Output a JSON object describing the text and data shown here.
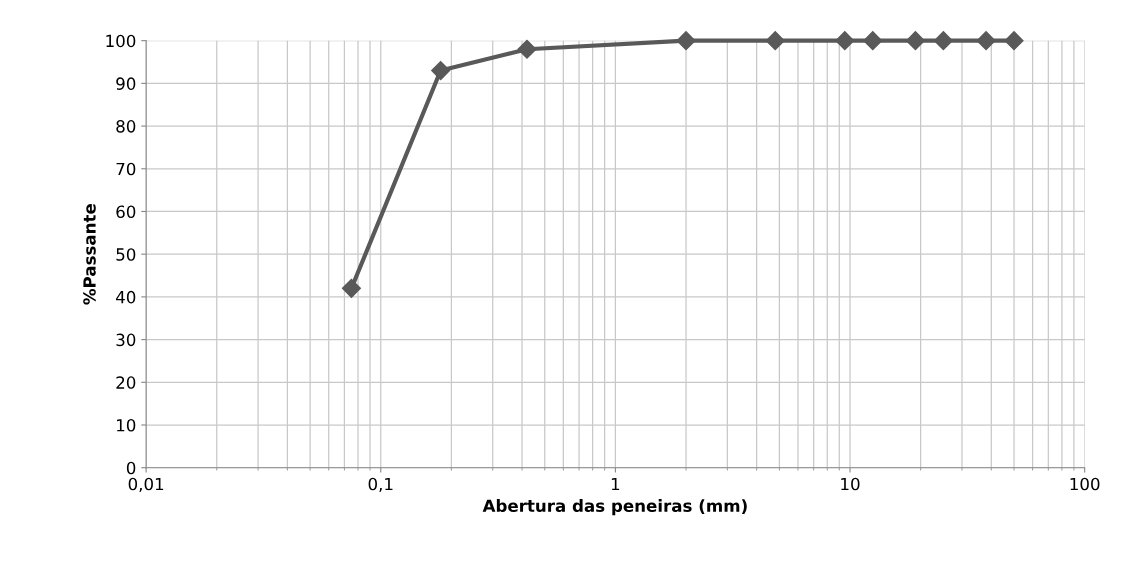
{
  "chart_data": {
    "type": "line",
    "xlabel": "Abertura das peneiras (mm)",
    "ylabel": "%Passante",
    "log": "x",
    "grid": true,
    "marker": "diamond",
    "line_style": "solid",
    "xlim": [
      0.01,
      100
    ],
    "xticks": [
      {
        "value": 0.01,
        "label": "0,01"
      },
      {
        "value": 0.1,
        "label": "0,1"
      },
      1,
      10,
      100
    ],
    "ylim": [
      0,
      100
    ],
    "yticks": [
      0,
      10,
      20,
      30,
      40,
      50,
      60,
      70,
      80,
      90,
      100
    ],
    "series": [
      {
        "color": "#595959",
        "x": [
          0.075,
          0.18,
          0.42,
          2,
          4.8,
          9.5,
          12.5,
          19,
          25,
          38,
          50
        ],
        "values": [
          42,
          93,
          98,
          100,
          100,
          100,
          100,
          100,
          100,
          100,
          100
        ]
      }
    ]
  }
}
